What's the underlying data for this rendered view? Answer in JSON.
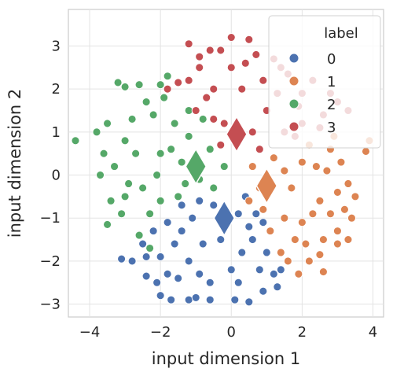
{
  "chart_data": {
    "type": "scatter",
    "xlabel": "input dimension 1",
    "ylabel": "input dimension 2",
    "xlim": [
      -4.6,
      4.3
    ],
    "ylim": [
      -3.3,
      3.85
    ],
    "xticks": [
      -4,
      -2,
      0,
      2,
      4
    ],
    "yticks": [
      -3,
      -2,
      -1,
      0,
      1,
      2,
      3
    ],
    "xtick_labels": [
      "−4",
      "−2",
      "0",
      "2",
      "4"
    ],
    "ytick_labels": [
      "−3",
      "−2",
      "−1",
      "0",
      "1",
      "2",
      "3"
    ],
    "grid": true,
    "legend": {
      "title": "label",
      "placement": "top-right",
      "entries": [
        "0",
        "1",
        "2",
        "3"
      ]
    },
    "series": [
      {
        "label": "0",
        "color": "#4C72B0",
        "centroid": [
          -0.2,
          -1.0
        ],
        "points": [
          [
            -0.2,
            -1.0
          ],
          [
            0.3,
            -1.8
          ],
          [
            -1.2,
            -2.0
          ],
          [
            0.8,
            -2.2
          ],
          [
            -0.6,
            -2.5
          ],
          [
            -1.4,
            -1.3
          ],
          [
            0.5,
            -1.2
          ],
          [
            -0.8,
            -1.6
          ],
          [
            0.9,
            -2.7
          ],
          [
            -1.8,
            -2.3
          ],
          [
            -2.1,
            -2.5
          ],
          [
            -2.0,
            -2.8
          ],
          [
            -1.2,
            -2.9
          ],
          [
            -1.0,
            -2.85
          ],
          [
            -0.6,
            -2.9
          ],
          [
            0.1,
            -2.9
          ],
          [
            0.5,
            -2.95
          ],
          [
            -2.4,
            -1.9
          ],
          [
            -2.5,
            -1.6
          ],
          [
            -1.6,
            -1.6
          ],
          [
            1.0,
            -1.8
          ],
          [
            1.2,
            -2.3
          ],
          [
            1.3,
            -2.6
          ],
          [
            1.4,
            -2.2
          ],
          [
            0.2,
            -0.9
          ],
          [
            -0.9,
            -0.6
          ],
          [
            -1.8,
            -1.1
          ],
          [
            -2.2,
            -1.3
          ],
          [
            -3.1,
            -1.95
          ],
          [
            -2.8,
            -2.0
          ],
          [
            -1.5,
            -2.4
          ],
          [
            0.0,
            -2.2
          ],
          [
            -0.3,
            -1.5
          ],
          [
            0.6,
            -1.5
          ],
          [
            -1.1,
            -1.0
          ],
          [
            -0.5,
            -0.7
          ],
          [
            0.4,
            -0.5
          ],
          [
            -2.0,
            -1.9
          ],
          [
            0.9,
            -1.1
          ],
          [
            -1.7,
            -2.9
          ],
          [
            -2.4,
            -2.35
          ],
          [
            0.2,
            -2.5
          ],
          [
            -0.9,
            -2.3
          ],
          [
            0.7,
            -0.9
          ],
          [
            -1.4,
            -0.7
          ]
        ]
      },
      {
        "label": "1",
        "color": "#DD8452",
        "centroid": [
          1.0,
          -0.25
        ],
        "points": [
          [
            1.0,
            -0.25
          ],
          [
            2.0,
            0.3
          ],
          [
            1.5,
            -1.0
          ],
          [
            2.5,
            -0.6
          ],
          [
            0.6,
            0.2
          ],
          [
            1.8,
            -1.5
          ],
          [
            2.7,
            0.1
          ],
          [
            3.0,
            -0.4
          ],
          [
            3.2,
            -0.8
          ],
          [
            3.0,
            -1.3
          ],
          [
            3.5,
            -0.5
          ],
          [
            3.9,
            0.8
          ],
          [
            3.8,
            0.55
          ],
          [
            3.3,
            -0.2
          ],
          [
            3.0,
            -1.6
          ],
          [
            2.6,
            -1.5
          ],
          [
            2.1,
            -1.6
          ],
          [
            2.6,
            -2.25
          ],
          [
            2.5,
            -1.85
          ],
          [
            1.9,
            -2.3
          ],
          [
            1.4,
            -1.8
          ],
          [
            0.8,
            -0.3
          ],
          [
            1.2,
            0.4
          ],
          [
            2.2,
            0.7
          ],
          [
            2.8,
            0.6
          ],
          [
            0.5,
            -0.6
          ],
          [
            1.7,
            -0.3
          ],
          [
            2.3,
            -0.9
          ],
          [
            1.1,
            -1.3
          ],
          [
            2.8,
            -0.9
          ],
          [
            3.4,
            -1.0
          ],
          [
            3.3,
            -1.5
          ],
          [
            2.0,
            -1.1
          ],
          [
            1.5,
            0.1
          ],
          [
            0.9,
            -0.8
          ],
          [
            2.4,
            0.2
          ],
          [
            3.1,
            0.3
          ],
          [
            1.6,
            -2.0
          ],
          [
            2.2,
            -2.0
          ],
          [
            2.9,
            0.9
          ]
        ]
      },
      {
        "label": "2",
        "color": "#55A868",
        "centroid": [
          -1.0,
          0.2
        ],
        "points": [
          [
            -1.0,
            0.2
          ],
          [
            -2.0,
            0.5
          ],
          [
            -2.5,
            -0.3
          ],
          [
            -1.6,
            1.2
          ],
          [
            -3.0,
            0.8
          ],
          [
            -4.4,
            0.8
          ],
          [
            -3.5,
            1.2
          ],
          [
            -3.2,
            2.15
          ],
          [
            -3.0,
            2.05
          ],
          [
            -2.6,
            2.1
          ],
          [
            -2.0,
            2.1
          ],
          [
            -1.8,
            2.3
          ],
          [
            -3.8,
            1.0
          ],
          [
            -3.6,
            0.5
          ],
          [
            -3.4,
            -0.6
          ],
          [
            -3.1,
            -0.9
          ],
          [
            -3.5,
            -1.15
          ],
          [
            -2.9,
            -0.2
          ],
          [
            -2.7,
            0.5
          ],
          [
            -2.2,
            1.4
          ],
          [
            -1.7,
            0.6
          ],
          [
            -1.3,
            -0.2
          ],
          [
            -0.6,
            0.6
          ],
          [
            -0.2,
            0.2
          ],
          [
            -0.5,
            -0.3
          ],
          [
            -1.2,
            0.9
          ],
          [
            -1.5,
            -0.5
          ],
          [
            -2.3,
            -0.9
          ],
          [
            -2.6,
            -1.4
          ],
          [
            -2.3,
            -1.7
          ],
          [
            -2.0,
            -0.6
          ],
          [
            -2.8,
            1.3
          ],
          [
            -2.4,
            1.7
          ],
          [
            -1.9,
            1.8
          ],
          [
            -1.2,
            1.5
          ],
          [
            -0.8,
            1.3
          ],
          [
            -3.3,
            0.2
          ],
          [
            -3.7,
            0.0
          ],
          [
            -3.0,
            -0.5
          ],
          [
            -2.1,
            0.0
          ],
          [
            -0.9,
            -0.1
          ],
          [
            -1.4,
            0.3
          ]
        ]
      },
      {
        "label": "3",
        "color": "#C44E52",
        "centroid": [
          0.15,
          0.95
        ],
        "points": [
          [
            0.15,
            0.95
          ],
          [
            -1.2,
            3.05
          ],
          [
            -0.9,
            2.5
          ],
          [
            -1.5,
            2.15
          ],
          [
            -1.8,
            2.0
          ],
          [
            0.0,
            3.2
          ],
          [
            0.5,
            3.15
          ],
          [
            -0.3,
            2.9
          ],
          [
            0.7,
            2.8
          ],
          [
            -0.6,
            2.9
          ],
          [
            -0.9,
            2.75
          ],
          [
            1.2,
            2.7
          ],
          [
            1.4,
            2.5
          ],
          [
            1.6,
            2.35
          ],
          [
            2.3,
            2.2
          ],
          [
            2.0,
            1.9
          ],
          [
            2.8,
            1.9
          ],
          [
            3.3,
            1.5
          ],
          [
            3.0,
            1.7
          ],
          [
            -1.0,
            1.5
          ],
          [
            -0.5,
            2.0
          ],
          [
            0.3,
            2.0
          ],
          [
            1.0,
            1.5
          ],
          [
            1.5,
            1.0
          ],
          [
            2.0,
            1.2
          ],
          [
            -0.2,
            1.2
          ],
          [
            0.6,
            1.0
          ],
          [
            1.8,
            0.9
          ],
          [
            2.5,
            1.1
          ],
          [
            -0.5,
            1.3
          ],
          [
            0.9,
            2.2
          ],
          [
            -1.2,
            2.2
          ],
          [
            0.0,
            2.5
          ],
          [
            1.3,
            1.9
          ],
          [
            2.6,
            1.4
          ],
          [
            -0.7,
            1.8
          ],
          [
            0.4,
            2.6
          ],
          [
            1.9,
            1.6
          ],
          [
            0.8,
            0.6
          ],
          [
            -0.3,
            0.7
          ]
        ]
      }
    ]
  }
}
